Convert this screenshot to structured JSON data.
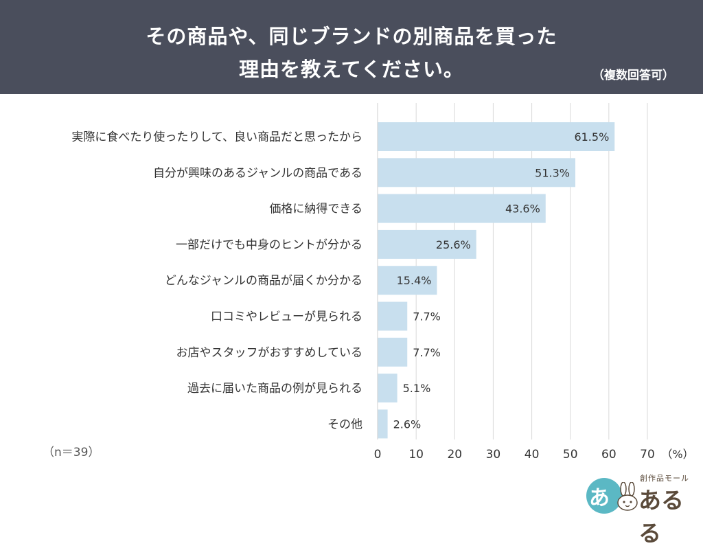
{
  "header": {
    "title_line1": "その商品や、同じブランドの別商品を買った",
    "title_line2": "理由を教えてください。",
    "note": "（複数回答可）"
  },
  "colors": {
    "header_bg": "#4a4e5c",
    "bar": "#c8dfee",
    "grid": "#d9d9d9",
    "text": "#333333"
  },
  "chart_data": {
    "type": "bar",
    "orientation": "horizontal",
    "categories": [
      "実際に食べたり使ったりして、良い商品だと思ったから",
      "自分が興味のあるジャンルの商品である",
      "価格に納得できる",
      "一部だけでも中身のヒントが分かる",
      "どんなジャンルの商品が届くか分かる",
      "口コミやレビューが見られる",
      "お店やスタッフがおすすめしている",
      "過去に届いた商品の例が見られる",
      "その他"
    ],
    "values": [
      61.5,
      51.3,
      43.6,
      25.6,
      15.4,
      7.7,
      7.7,
      5.1,
      2.6
    ],
    "value_labels": [
      "61.5%",
      "51.3%",
      "43.6%",
      "25.6%",
      "15.4%",
      "7.7%",
      "7.7%",
      "5.1%",
      "2.6%"
    ],
    "x_ticks": [
      "0",
      "10",
      "20",
      "30",
      "40",
      "50",
      "60",
      "70"
    ],
    "x_unit": "（%）",
    "xlim": [
      0,
      70
    ],
    "grid": true
  },
  "sample_size": "（n＝39）",
  "logo": {
    "tagline": "創作品モール",
    "name": "あるる",
    "mark_letter": "あ"
  }
}
